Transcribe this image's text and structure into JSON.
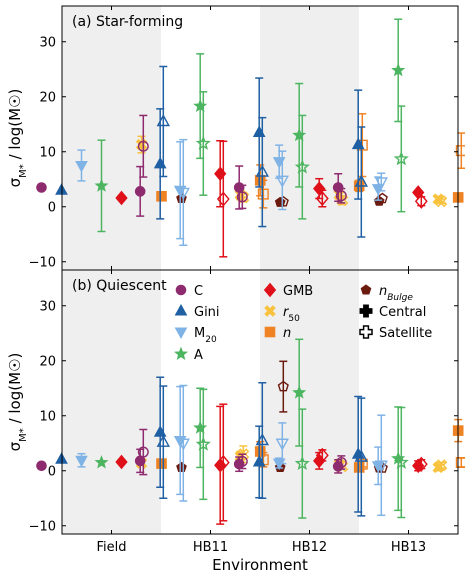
{
  "chart_data": {
    "type": "scatter",
    "xlabel": "Environment",
    "categories": [
      "Field",
      "HB11",
      "HB12",
      "HB13"
    ],
    "ylim": [
      -11.5,
      36.5
    ],
    "yticks": [
      -10,
      0,
      10,
      20,
      30
    ],
    "ytick_labels": [
      "−10",
      "0",
      "10",
      "20",
      "30"
    ],
    "grid": false,
    "shaded_bands": [
      "Field",
      "HB12"
    ],
    "legend_position": "panel-b-upper-right",
    "legend": [
      {
        "key": "C",
        "label": "C",
        "marker": "circle",
        "color": "#8e2a6e"
      },
      {
        "key": "Gini",
        "label": "Gini",
        "marker": "triangle",
        "color": "#1f5fa3"
      },
      {
        "key": "M20",
        "label": "M₂₀",
        "marker": "triangle-down",
        "color": "#7fb3e6"
      },
      {
        "key": "A",
        "label": "A",
        "marker": "star",
        "color": "#4db560"
      },
      {
        "key": "GMB",
        "label": "GMB",
        "marker": "diamond",
        "color": "#e0101a"
      },
      {
        "key": "r50",
        "label": "r₅₀",
        "marker": "cross-x",
        "color": "#f8c23e"
      },
      {
        "key": "n",
        "label": "n",
        "marker": "square",
        "color": "#ef8323"
      },
      {
        "key": "nBulge",
        "label": "n_Bulge",
        "marker": "pentagon",
        "color": "#6b1a0e"
      },
      {
        "key": "Central",
        "label": "Central",
        "marker": "plus",
        "color": "#000000"
      },
      {
        "key": "Satellite",
        "label": "Satellite",
        "marker": "plus-open",
        "color": "#000000"
      }
    ],
    "series_order": [
      "C",
      "Gini",
      "M20",
      "A",
      "GMB",
      "r50",
      "n",
      "nBulge"
    ],
    "panels": [
      {
        "label": "(a) Star-forming",
        "ylabel_main": "σ",
        "ylabel_sub": "M*",
        "ylabel_rest": " / log(M☉)",
        "groups": [
          {
            "category": "Field",
            "points": {
              "C": [
                {
                  "y": 3.5,
                  "err": 0,
                  "filled": true
                }
              ],
              "Gini": [
                {
                  "y": 3.0,
                  "err": 0,
                  "filled": true
                }
              ],
              "M20": [
                {
                  "y": 7.5,
                  "err": 2.8,
                  "filled": true
                }
              ],
              "A": [
                {
                  "y": 3.8,
                  "err": 8.3,
                  "filled": true
                }
              ],
              "GMB": [
                {
                  "y": 1.6,
                  "err": 0,
                  "filled": true
                }
              ],
              "r50": [
                {
                  "y": 11.3,
                  "err": 1.5,
                  "filled": true
                }
              ],
              "n": [
                {
                  "y": 1.9,
                  "err": 0,
                  "filled": true
                }
              ],
              "nBulge": [
                {
                  "y": 1.5,
                  "err": 0,
                  "filled": true
                }
              ]
            }
          },
          {
            "category": "HB11",
            "points": {
              "C": [
                {
                  "y": 2.8,
                  "err": 4.5,
                  "filled": true
                },
                {
                  "y": 11.0,
                  "err": 5.6,
                  "filled": false
                }
              ],
              "Gini": [
                {
                  "y": 7.8,
                  "err": 10.0,
                  "filled": true
                },
                {
                  "y": 15.5,
                  "err": 10.0,
                  "filled": false
                }
              ],
              "M20": [
                {
                  "y": 3.0,
                  "err": 8.8,
                  "filled": true
                },
                {
                  "y": 2.6,
                  "err": 9.6,
                  "filled": false
                }
              ],
              "A": [
                {
                  "y": 18.3,
                  "err": 9.5,
                  "filled": true
                },
                {
                  "y": 11.5,
                  "err": 9.4,
                  "filled": false
                }
              ],
              "GMB": [
                {
                  "y": 6.0,
                  "err": 6.0,
                  "filled": true
                },
                {
                  "y": 1.4,
                  "err": 10.5,
                  "filled": false
                }
              ],
              "r50": [
                {
                  "y": 2.2,
                  "err": 0.9,
                  "filled": true
                },
                {
                  "y": 1.7,
                  "err": 0.8,
                  "filled": false
                }
              ],
              "n": [
                {
                  "y": 4.8,
                  "err": 2.8,
                  "filled": true
                },
                {
                  "y": 2.3,
                  "err": 2.5,
                  "filled": false
                }
              ],
              "nBulge": [
                {
                  "y": 0.8,
                  "err": 0,
                  "filled": true
                },
                {
                  "y": 0.9,
                  "err": 0,
                  "filled": false
                }
              ]
            }
          },
          {
            "category": "HB12",
            "points": {
              "C": [
                {
                  "y": 3.5,
                  "err": 3.9,
                  "filled": true
                },
                {
                  "y": 1.8,
                  "err": 2.1,
                  "filled": false
                }
              ],
              "Gini": [
                {
                  "y": 13.5,
                  "err": 9.9,
                  "filled": true
                },
                {
                  "y": 6.3,
                  "err": 9.9,
                  "filled": false
                }
              ],
              "M20": [
                {
                  "y": 8.2,
                  "err": 3.0,
                  "filled": true
                },
                {
                  "y": 4.8,
                  "err": 5.3,
                  "filled": false
                }
              ],
              "A": [
                {
                  "y": 13.0,
                  "err": 9.4,
                  "filled": true
                },
                {
                  "y": 7.2,
                  "err": 9.4,
                  "filled": false
                }
              ],
              "GMB": [
                {
                  "y": 3.3,
                  "err": 1.8,
                  "filled": true
                },
                {
                  "y": 1.5,
                  "err": 1.5,
                  "filled": false
                }
              ],
              "r50": [
                {
                  "y": 2.2,
                  "err": 0.8,
                  "filled": true
                },
                {
                  "y": 1.2,
                  "err": 0.8,
                  "filled": false
                }
              ],
              "n": [
                {
                  "y": 3.8,
                  "err": 1.0,
                  "filled": true
                },
                {
                  "y": 11.2,
                  "err": 5.7,
                  "filled": false
                }
              ],
              "nBulge": [
                {
                  "y": 1.0,
                  "err": 0,
                  "filled": true
                },
                {
                  "y": 1.5,
                  "err": 0,
                  "filled": false
                }
              ]
            }
          },
          {
            "category": "HB13",
            "points": {
              "C": [
                {
                  "y": 3.5,
                  "err": 2.5,
                  "filled": true
                },
                {
                  "y": 2.0,
                  "err": 1.3,
                  "filled": false
                }
              ],
              "Gini": [
                {
                  "y": 11.3,
                  "err": 9.9,
                  "filled": true
                },
                {
                  "y": 4.5,
                  "err": 10.0,
                  "filled": false
                }
              ],
              "M20": [
                {
                  "y": 3.3,
                  "err": 2.1,
                  "filled": true
                },
                {
                  "y": 4.5,
                  "err": 1.6,
                  "filled": false
                }
              ],
              "A": [
                {
                  "y": 24.8,
                  "err": 9.3,
                  "filled": true
                },
                {
                  "y": 8.7,
                  "err": 9.6,
                  "filled": false
                }
              ],
              "GMB": [
                {
                  "y": 2.6,
                  "err": 0,
                  "filled": true
                },
                {
                  "y": 1.0,
                  "err": 0.8,
                  "filled": false
                }
              ],
              "r50": [
                {
                  "y": 1.4,
                  "err": 0.5,
                  "filled": true
                },
                {
                  "y": 1.0,
                  "err": 0.4,
                  "filled": false
                }
              ],
              "n": [
                {
                  "y": 1.7,
                  "err": 0.5,
                  "filled": true
                },
                {
                  "y": 10.2,
                  "err": 3.2,
                  "filled": false
                }
              ],
              "nBulge": [
                {
                  "y": 3.6,
                  "err": 0,
                  "filled": true
                },
                {
                  "y": 1.3,
                  "err": 0,
                  "filled": false
                }
              ]
            }
          }
        ]
      },
      {
        "label": "(b) Quiescent",
        "ylabel_main": "σ",
        "ylabel_sub": "M*",
        "ylabel_rest": " / log(M☉)",
        "groups": [
          {
            "category": "Field",
            "points": {
              "C": [
                {
                  "y": 0.9,
                  "err": 0,
                  "filled": true
                }
              ],
              "Gini": [
                {
                  "y": 2.1,
                  "err": 0,
                  "filled": true
                }
              ],
              "M20": [
                {
                  "y": 1.9,
                  "err": 1.2,
                  "filled": true
                }
              ],
              "A": [
                {
                  "y": 1.5,
                  "err": 0,
                  "filled": true
                }
              ],
              "GMB": [
                {
                  "y": 1.6,
                  "err": 0,
                  "filled": true
                }
              ],
              "r50": [
                {
                  "y": 1.4,
                  "err": 0,
                  "filled": true
                }
              ],
              "n": [
                {
                  "y": 1.3,
                  "err": 0,
                  "filled": true
                }
              ],
              "nBulge": [
                {
                  "y": 0.6,
                  "err": 0,
                  "filled": true
                }
              ]
            }
          },
          {
            "category": "HB11",
            "points": {
              "C": [
                {
                  "y": 1.8,
                  "err": 2.1,
                  "filled": true
                },
                {
                  "y": 3.4,
                  "err": 4.1,
                  "filled": false
                }
              ],
              "Gini": [
                {
                  "y": 7.0,
                  "err": 10.0,
                  "filled": true
                },
                {
                  "y": 5.2,
                  "err": 10.2,
                  "filled": false
                }
              ],
              "M20": [
                {
                  "y": 5.5,
                  "err": 9.8,
                  "filled": true
                },
                {
                  "y": 5.0,
                  "err": 10.5,
                  "filled": false
                }
              ],
              "A": [
                {
                  "y": 7.8,
                  "err": 7.2,
                  "filled": true
                },
                {
                  "y": 4.8,
                  "err": 10.0,
                  "filled": false
                }
              ],
              "GMB": [
                {
                  "y": 1.0,
                  "err": 10.7,
                  "filled": true
                },
                {
                  "y": 1.5,
                  "err": 10.6,
                  "filled": false
                }
              ],
              "r50": [
                {
                  "y": 2.6,
                  "err": 0.9,
                  "filled": true
                },
                {
                  "y": 3.0,
                  "err": 1.5,
                  "filled": false
                }
              ],
              "n": [
                {
                  "y": 3.5,
                  "err": 1.8,
                  "filled": true
                },
                {
                  "y": 2.0,
                  "err": 1.3,
                  "filled": false
                }
              ],
              "nBulge": [
                {
                  "y": 0.6,
                  "err": 0,
                  "filled": true
                },
                {
                  "y": 15.3,
                  "err": 4.6,
                  "filled": false
                }
              ]
            }
          },
          {
            "category": "HB12",
            "points": {
              "C": [
                {
                  "y": 1.2,
                  "err": 1.3,
                  "filled": true
                },
                {
                  "y": 1.7,
                  "err": 1.3,
                  "filled": false
                }
              ],
              "Gini": [
                {
                  "y": 1.6,
                  "err": 6.5,
                  "filled": true
                },
                {
                  "y": 5.5,
                  "err": 10.5,
                  "filled": false
                }
              ],
              "M20": [
                {
                  "y": 1.4,
                  "err": 0.9,
                  "filled": true
                },
                {
                  "y": 5.0,
                  "err": 3.7,
                  "filled": false
                }
              ],
              "A": [
                {
                  "y": 14.2,
                  "err": 9.7,
                  "filled": true
                },
                {
                  "y": 1.3,
                  "err": 9.9,
                  "filled": false
                }
              ],
              "GMB": [
                {
                  "y": 1.8,
                  "err": 1.5,
                  "filled": true
                },
                {
                  "y": 2.8,
                  "err": 1.0,
                  "filled": false
                }
              ],
              "r50": [
                {
                  "y": 1.2,
                  "err": 0,
                  "filled": true
                },
                {
                  "y": 0.8,
                  "err": 0,
                  "filled": false
                }
              ],
              "n": [
                {
                  "y": 0.6,
                  "err": 0.7,
                  "filled": true
                },
                {
                  "y": 1.2,
                  "err": 0.5,
                  "filled": false
                }
              ],
              "nBulge": [
                {
                  "y": 0.5,
                  "err": 0,
                  "filled": true
                },
                {
                  "y": 0.5,
                  "err": 0,
                  "filled": false
                }
              ]
            }
          },
          {
            "category": "HB13",
            "points": {
              "C": [
                {
                  "y": 0.8,
                  "err": 1.2,
                  "filled": true
                },
                {
                  "y": 1.5,
                  "err": 1.2,
                  "filled": false
                }
              ],
              "Gini": [
                {
                  "y": 3.0,
                  "err": 10.5,
                  "filled": true
                },
                {
                  "y": 2.5,
                  "err": 10.7,
                  "filled": false
                }
              ],
              "M20": [
                {
                  "y": 0.9,
                  "err": 3.4,
                  "filled": true
                },
                {
                  "y": 1.0,
                  "err": 9.1,
                  "filled": false
                }
              ],
              "A": [
                {
                  "y": 2.2,
                  "err": 9.4,
                  "filled": true
                },
                {
                  "y": 1.5,
                  "err": 10.0,
                  "filled": false
                }
              ],
              "GMB": [
                {
                  "y": 0.9,
                  "err": 0.9,
                  "filled": true
                },
                {
                  "y": 1.2,
                  "err": 0.8,
                  "filled": false
                }
              ],
              "r50": [
                {
                  "y": 0.6,
                  "err": 0.6,
                  "filled": true
                },
                {
                  "y": 1.0,
                  "err": 0.5,
                  "filled": false
                }
              ],
              "n": [
                {
                  "y": 7.3,
                  "err": 2.0,
                  "filled": true
                },
                {
                  "y": 1.5,
                  "err": 0.8,
                  "filled": false
                }
              ],
              "nBulge": [
                {
                  "y": 0.6,
                  "err": 0,
                  "filled": true
                },
                {
                  "y": 1.4,
                  "err": 0,
                  "filled": false
                }
              ]
            }
          }
        ]
      }
    ]
  }
}
